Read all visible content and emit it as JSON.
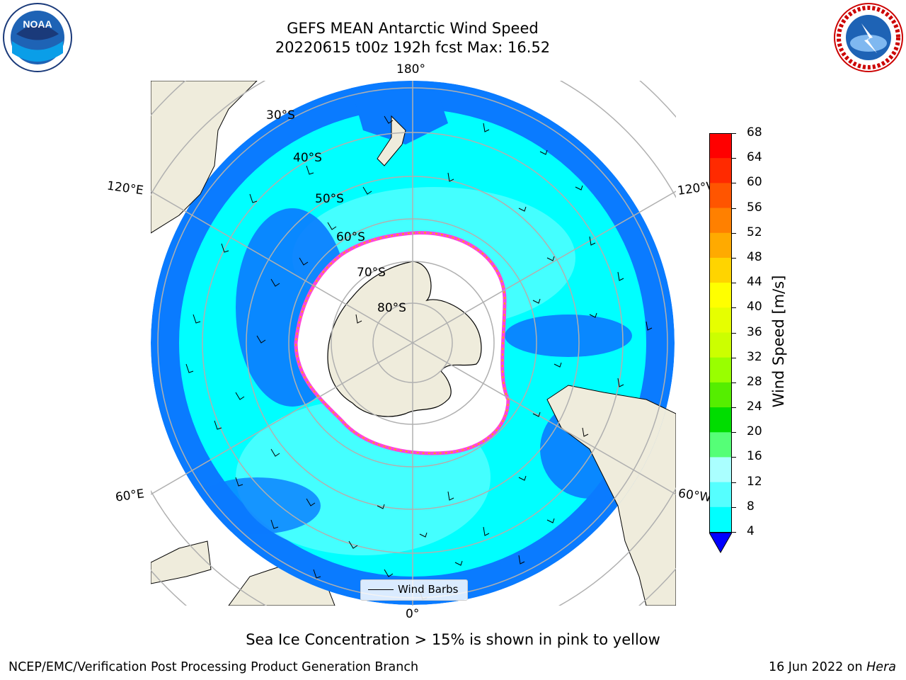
{
  "title_line1": "GEFS MEAN Antarctic Wind Speed",
  "title_line2": "20220615 t00z 192h fcst   Max: 16.52",
  "subtitle": "Sea Ice Concentration > 15% is shown in pink to yellow",
  "footer_left": "NCEP/EMC/Verification Post Processing Product Generation Branch",
  "footer_right_prefix": "16 Jun 2022 on ",
  "footer_right_host": "Hera",
  "legend_label": "Wind Barbs",
  "logos": {
    "left": "NOAA",
    "right": "NATIONAL WEATHER SERVICE"
  },
  "longitude_labels": {
    "top": "180°",
    "bottom": "0°",
    "upper_left": "120°E",
    "lower_left": "60°E",
    "upper_right": "120°W",
    "lower_right": "60°W"
  },
  "latitude_labels": [
    "30°S",
    "40°S",
    "50°S",
    "60°S",
    "70°S",
    "80°S"
  ],
  "colorbar": {
    "label": "Wind Speed [m/s]",
    "ticks": [
      "68",
      "64",
      "60",
      "56",
      "52",
      "48",
      "44",
      "40",
      "36",
      "32",
      "28",
      "24",
      "20",
      "16",
      "12",
      "8",
      "4"
    ],
    "colors": [
      "#ff0000",
      "#ff2a00",
      "#ff5500",
      "#ff8000",
      "#ffaa00",
      "#ffd400",
      "#ffff00",
      "#e6ff00",
      "#ccff00",
      "#99ff00",
      "#55ee00",
      "#00dd00",
      "#55ff77",
      "#aaffff",
      "#55ffff",
      "#00ffff",
      "#0080ff"
    ],
    "under_color": "#0000ff"
  },
  "colors": {
    "land": "#efecdc",
    "ocean_low": "#0a7bff",
    "ocean_mid": "#00ffff",
    "ocean_high": "#55ffff",
    "ice_edge": "#ff44dd"
  }
}
